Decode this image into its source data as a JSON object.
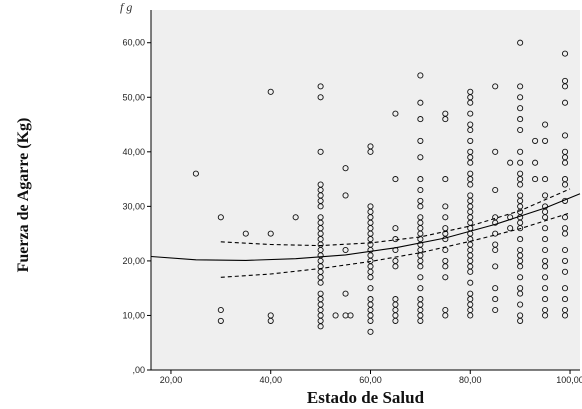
{
  "caption": "f                                                          g",
  "chart_data": {
    "type": "scatter",
    "title": "",
    "xlabel": "Estado de Salud",
    "ylabel": "Fuerza de Agarre (Kg)",
    "xlim": [
      16,
      102
    ],
    "ylim": [
      0,
      66
    ],
    "xticks": [
      20,
      40,
      60,
      80,
      100
    ],
    "yticks": [
      0,
      10,
      20,
      30,
      40,
      50,
      60
    ],
    "xtick_labels": [
      "20,00",
      "40,00",
      "60,00",
      "80,00",
      "100,00"
    ],
    "ytick_labels": [
      ",00",
      "10,00",
      "20,00",
      "30,00",
      "40,00",
      "50,00",
      "60,00"
    ],
    "grid": false,
    "background": "#efefef",
    "marker": "open-circle",
    "points": [
      [
        25,
        36
      ],
      [
        30,
        28
      ],
      [
        30,
        11
      ],
      [
        30,
        9
      ],
      [
        35,
        25
      ],
      [
        40,
        51
      ],
      [
        40,
        25
      ],
      [
        40,
        10
      ],
      [
        40,
        9
      ],
      [
        45,
        28
      ],
      [
        50,
        52
      ],
      [
        50,
        50
      ],
      [
        50,
        40
      ],
      [
        50,
        34
      ],
      [
        50,
        33
      ],
      [
        50,
        32
      ],
      [
        50,
        31
      ],
      [
        50,
        30
      ],
      [
        50,
        28
      ],
      [
        50,
        27
      ],
      [
        50,
        26
      ],
      [
        50,
        25
      ],
      [
        50,
        24
      ],
      [
        50,
        23
      ],
      [
        50,
        22
      ],
      [
        50,
        21
      ],
      [
        50,
        20
      ],
      [
        50,
        19
      ],
      [
        50,
        18
      ],
      [
        50,
        17
      ],
      [
        50,
        16
      ],
      [
        50,
        14
      ],
      [
        50,
        13
      ],
      [
        50,
        12
      ],
      [
        50,
        11
      ],
      [
        50,
        10
      ],
      [
        50,
        9
      ],
      [
        50,
        8
      ],
      [
        53,
        10
      ],
      [
        55,
        37
      ],
      [
        55,
        32
      ],
      [
        55,
        22
      ],
      [
        55,
        14
      ],
      [
        55,
        10
      ],
      [
        56,
        10
      ],
      [
        60,
        41
      ],
      [
        60,
        40
      ],
      [
        60,
        30
      ],
      [
        60,
        29
      ],
      [
        60,
        28
      ],
      [
        60,
        27
      ],
      [
        60,
        26
      ],
      [
        60,
        25
      ],
      [
        60,
        24
      ],
      [
        60,
        23
      ],
      [
        60,
        22
      ],
      [
        60,
        21
      ],
      [
        60,
        20
      ],
      [
        60,
        19
      ],
      [
        60,
        18
      ],
      [
        60,
        17
      ],
      [
        60,
        15
      ],
      [
        60,
        13
      ],
      [
        60,
        12
      ],
      [
        60,
        11
      ],
      [
        60,
        10
      ],
      [
        60,
        9
      ],
      [
        60,
        7
      ],
      [
        65,
        47
      ],
      [
        65,
        35
      ],
      [
        65,
        26
      ],
      [
        65,
        24
      ],
      [
        65,
        22
      ],
      [
        65,
        20
      ],
      [
        65,
        19
      ],
      [
        65,
        13
      ],
      [
        65,
        12
      ],
      [
        65,
        11
      ],
      [
        65,
        10
      ],
      [
        65,
        9
      ],
      [
        70,
        54
      ],
      [
        70,
        49
      ],
      [
        70,
        46
      ],
      [
        70,
        42
      ],
      [
        70,
        39
      ],
      [
        70,
        35
      ],
      [
        70,
        33
      ],
      [
        70,
        31
      ],
      [
        70,
        30
      ],
      [
        70,
        28
      ],
      [
        70,
        27
      ],
      [
        70,
        26
      ],
      [
        70,
        25
      ],
      [
        70,
        24
      ],
      [
        70,
        23
      ],
      [
        70,
        22
      ],
      [
        70,
        21
      ],
      [
        70,
        20
      ],
      [
        70,
        19
      ],
      [
        70,
        17
      ],
      [
        70,
        15
      ],
      [
        70,
        13
      ],
      [
        70,
        12
      ],
      [
        70,
        11
      ],
      [
        70,
        10
      ],
      [
        70,
        9
      ],
      [
        75,
        47
      ],
      [
        75,
        46
      ],
      [
        75,
        35
      ],
      [
        75,
        30
      ],
      [
        75,
        28
      ],
      [
        75,
        26
      ],
      [
        75,
        25
      ],
      [
        75,
        24
      ],
      [
        75,
        22
      ],
      [
        75,
        20
      ],
      [
        75,
        19
      ],
      [
        75,
        17
      ],
      [
        75,
        11
      ],
      [
        75,
        10
      ],
      [
        80,
        51
      ],
      [
        80,
        50
      ],
      [
        80,
        49
      ],
      [
        80,
        47
      ],
      [
        80,
        45
      ],
      [
        80,
        44
      ],
      [
        80,
        42
      ],
      [
        80,
        40
      ],
      [
        80,
        39
      ],
      [
        80,
        38
      ],
      [
        80,
        36
      ],
      [
        80,
        35
      ],
      [
        80,
        34
      ],
      [
        80,
        32
      ],
      [
        80,
        31
      ],
      [
        80,
        30
      ],
      [
        80,
        29
      ],
      [
        80,
        28
      ],
      [
        80,
        27
      ],
      [
        80,
        26
      ],
      [
        80,
        25
      ],
      [
        80,
        24
      ],
      [
        80,
        23
      ],
      [
        80,
        22
      ],
      [
        80,
        21
      ],
      [
        80,
        20
      ],
      [
        80,
        19
      ],
      [
        80,
        18
      ],
      [
        80,
        16
      ],
      [
        80,
        14
      ],
      [
        80,
        13
      ],
      [
        80,
        12
      ],
      [
        80,
        11
      ],
      [
        80,
        10
      ],
      [
        85,
        52
      ],
      [
        85,
        40
      ],
      [
        85,
        33
      ],
      [
        85,
        28
      ],
      [
        85,
        27
      ],
      [
        85,
        25
      ],
      [
        85,
        23
      ],
      [
        85,
        22
      ],
      [
        85,
        19
      ],
      [
        85,
        15
      ],
      [
        85,
        13
      ],
      [
        85,
        11
      ],
      [
        88,
        38
      ],
      [
        88,
        28
      ],
      [
        88,
        26
      ],
      [
        90,
        60
      ],
      [
        90,
        52
      ],
      [
        90,
        50
      ],
      [
        90,
        48
      ],
      [
        90,
        46
      ],
      [
        90,
        44
      ],
      [
        90,
        40
      ],
      [
        90,
        38
      ],
      [
        90,
        36
      ],
      [
        90,
        35
      ],
      [
        90,
        34
      ],
      [
        90,
        32
      ],
      [
        90,
        31
      ],
      [
        90,
        30
      ],
      [
        90,
        29
      ],
      [
        90,
        28
      ],
      [
        90,
        27
      ],
      [
        90,
        26
      ],
      [
        90,
        24
      ],
      [
        90,
        22
      ],
      [
        90,
        21
      ],
      [
        90,
        20
      ],
      [
        90,
        19
      ],
      [
        90,
        17
      ],
      [
        90,
        15
      ],
      [
        90,
        14
      ],
      [
        90,
        12
      ],
      [
        90,
        10
      ],
      [
        90,
        9
      ],
      [
        93,
        42
      ],
      [
        93,
        38
      ],
      [
        93,
        35
      ],
      [
        95,
        45
      ],
      [
        95,
        42
      ],
      [
        95,
        35
      ],
      [
        95,
        32
      ],
      [
        95,
        30
      ],
      [
        95,
        29
      ],
      [
        95,
        28
      ],
      [
        95,
        26
      ],
      [
        95,
        24
      ],
      [
        95,
        22
      ],
      [
        95,
        20
      ],
      [
        95,
        19
      ],
      [
        95,
        17
      ],
      [
        95,
        15
      ],
      [
        95,
        13
      ],
      [
        95,
        11
      ],
      [
        95,
        10
      ],
      [
        99,
        58
      ],
      [
        99,
        53
      ],
      [
        99,
        52
      ],
      [
        99,
        49
      ],
      [
        99,
        43
      ],
      [
        99,
        40
      ],
      [
        99,
        39
      ],
      [
        99,
        38
      ],
      [
        99,
        35
      ],
      [
        99,
        34
      ],
      [
        99,
        31
      ],
      [
        99,
        28
      ],
      [
        99,
        26
      ],
      [
        99,
        25
      ],
      [
        99,
        22
      ],
      [
        99,
        20
      ],
      [
        99,
        18
      ],
      [
        99,
        15
      ],
      [
        99,
        13
      ],
      [
        99,
        11
      ],
      [
        99,
        10
      ]
    ],
    "fit_line": {
      "style": "solid",
      "color": "#000000",
      "x": [
        16,
        25,
        35,
        45,
        55,
        65,
        75,
        85,
        95,
        102
      ],
      "y": [
        20.8,
        20.2,
        20.1,
        20.4,
        21.1,
        22.4,
        24.2,
        26.7,
        29.7,
        32.3
      ]
    },
    "ci_lower": {
      "style": "dashed",
      "color": "#000000",
      "x": [
        30,
        40,
        50,
        60,
        70,
        80,
        90,
        100
      ],
      "y": [
        17.0,
        17.6,
        18.6,
        19.9,
        21.5,
        23.6,
        25.9,
        28.8
      ]
    },
    "ci_upper": {
      "style": "dashed",
      "color": "#000000",
      "x": [
        30,
        40,
        50,
        60,
        70,
        80,
        90,
        100
      ],
      "y": [
        23.5,
        23.0,
        22.8,
        23.3,
        24.4,
        26.4,
        29.2,
        33.2
      ]
    }
  }
}
